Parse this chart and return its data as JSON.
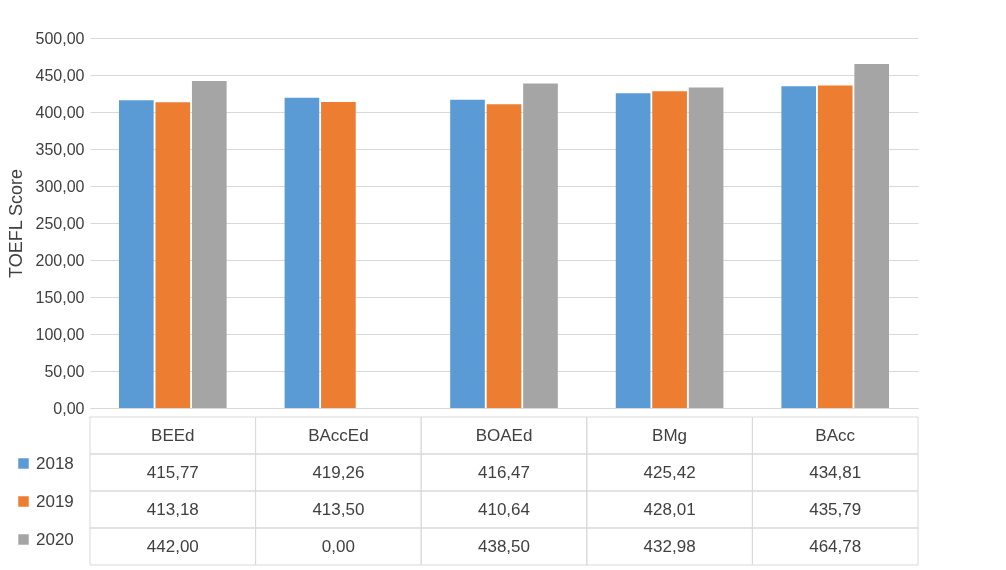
{
  "chart_data": {
    "type": "bar",
    "ylabel": "TOEFL Score",
    "categories": [
      "BEEd",
      "BAccEd",
      "BOAEd",
      "BMg",
      "BAcc"
    ],
    "series": [
      {
        "name": "2018",
        "color": "#5b9bd5",
        "values": [
          415.77,
          419.26,
          416.47,
          425.42,
          434.81
        ],
        "value_labels": [
          "415,77",
          "419,26",
          "416,47",
          "425,42",
          "434,81"
        ]
      },
      {
        "name": "2019",
        "color": "#ed7d31",
        "values": [
          413.18,
          413.5,
          410.64,
          428.01,
          435.79
        ],
        "value_labels": [
          "413,18",
          "413,50",
          "410,64",
          "428,01",
          "435,79"
        ]
      },
      {
        "name": "2020",
        "color": "#a5a5a5",
        "values": [
          442,
          0,
          438.5,
          432.98,
          464.78
        ],
        "value_labels": [
          "442,00",
          "0,00",
          "438,50",
          "432,98",
          "464,78"
        ]
      }
    ],
    "ylim": [
      0,
      500
    ],
    "yticks": [
      {
        "value": 0,
        "label": "0,00"
      },
      {
        "value": 50,
        "label": "50,00"
      },
      {
        "value": 100,
        "label": "100,00"
      },
      {
        "value": 150,
        "label": "150,00"
      },
      {
        "value": 200,
        "label": "200,00"
      },
      {
        "value": 250,
        "label": "250,00"
      },
      {
        "value": 300,
        "label": "300,00"
      },
      {
        "value": 350,
        "label": "350,00"
      },
      {
        "value": 400,
        "label": "400,00"
      },
      {
        "value": 450,
        "label": "450,00"
      },
      {
        "value": 500,
        "label": "500,00"
      }
    ],
    "grid": true,
    "legend": "bottom left"
  }
}
